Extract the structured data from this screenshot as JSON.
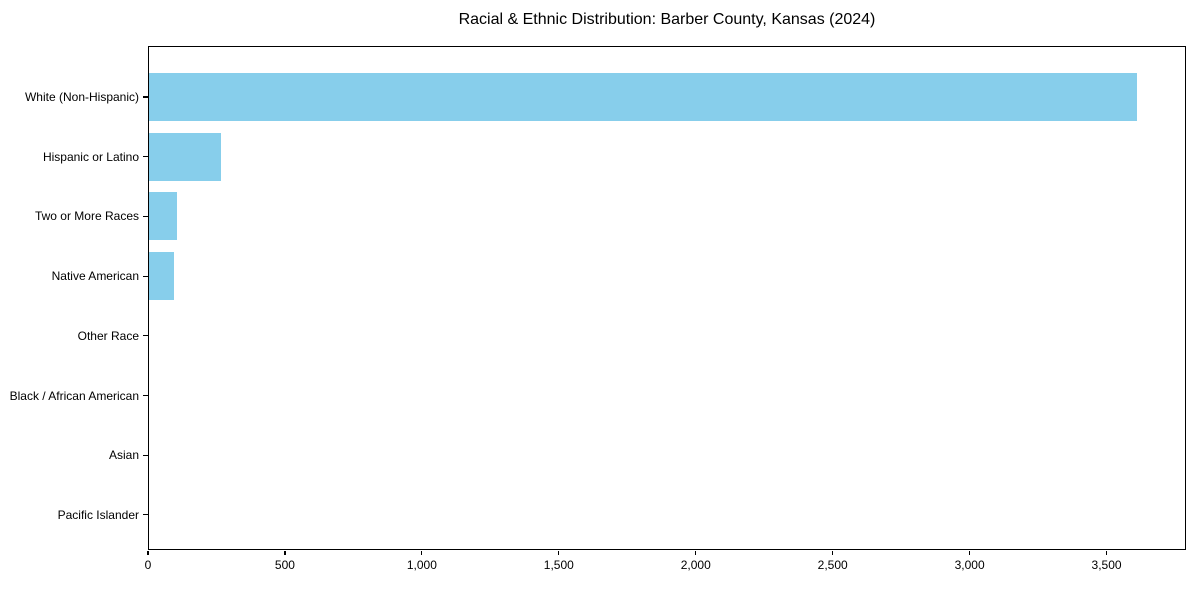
{
  "chart_data": {
    "type": "bar",
    "orientation": "horizontal",
    "title": "Racial & Ethnic Distribution: Barber County, Kansas (2024)",
    "categories": [
      "White (Non-Hispanic)",
      "Hispanic or Latino",
      "Two or More Races",
      "Native American",
      "Other Race",
      "Black / African American",
      "Asian",
      "Pacific Islander"
    ],
    "values": [
      3610,
      265,
      105,
      95,
      5,
      0,
      0,
      0
    ],
    "xlabel": "",
    "ylabel": "",
    "xlim": [
      0,
      3790
    ],
    "x_ticks": [
      0,
      500,
      1000,
      1500,
      2000,
      2500,
      3000,
      3500
    ],
    "x_tick_labels": [
      "0",
      "500",
      "1,000",
      "1,500",
      "2,000",
      "2,500",
      "3,000",
      "3,500"
    ],
    "bar_color": "#87CEEB",
    "axis_color": "#000000",
    "text_color": "#000000",
    "background_color": "#ffffff",
    "grid": false,
    "legend": false
  }
}
